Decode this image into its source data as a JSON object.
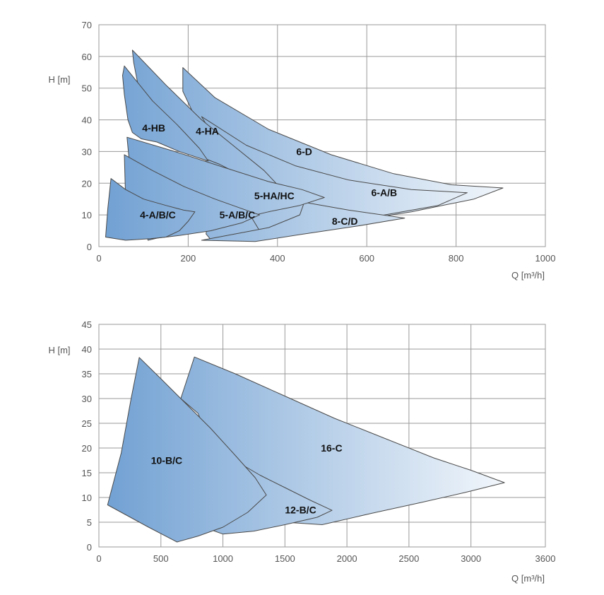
{
  "chart_data": [
    {
      "type": "area",
      "xlabel": "Q [m³/h]",
      "ylabel": "H [m]",
      "xlim": [
        0,
        1000
      ],
      "ylim": [
        0,
        70
      ],
      "xticks": [
        0,
        200,
        400,
        600,
        800,
        1000
      ],
      "yticks": [
        0,
        10,
        20,
        30,
        40,
        50,
        60,
        70
      ],
      "grid": true,
      "gradient": [
        "#6f9fd2",
        "#ffffff"
      ],
      "series": [
        {
          "name": "6-D",
          "label_at": [
            442,
            30
          ],
          "points": [
            [
              188,
              56.5
            ],
            [
              260,
              47
            ],
            [
              380,
              37
            ],
            [
              520,
              29
            ],
            [
              660,
              23
            ],
            [
              790,
              19.5
            ],
            [
              905,
              18.5
            ],
            [
              840,
              15
            ],
            [
              700,
              11
            ],
            [
              540,
              7.5
            ],
            [
              380,
              5
            ],
            [
              250,
              2.3
            ],
            [
              240,
              4
            ],
            [
              250,
              15
            ],
            [
              240,
              27
            ],
            [
              225,
              38
            ],
            [
              188,
              49
            ]
          ]
        },
        {
          "name": "6-A/B",
          "label_at": [
            610,
            17
          ],
          "points": [
            [
              230,
              41
            ],
            [
              330,
              32
            ],
            [
              440,
              25.5
            ],
            [
              560,
              21
            ],
            [
              700,
              18
            ],
            [
              825,
              17
            ],
            [
              760,
              13
            ],
            [
              620,
              9.5
            ],
            [
              470,
              6.5
            ],
            [
              360,
              5
            ],
            [
              330,
              12
            ],
            [
              300,
              24
            ],
            [
              260,
              34
            ]
          ]
        },
        {
          "name": "8-C/D",
          "label_at": [
            522,
            8
          ],
          "points": [
            [
              460,
              14
            ],
            [
              560,
              11.5
            ],
            [
              685,
              9
            ],
            [
              580,
              6.5
            ],
            [
              450,
              3.8
            ],
            [
              350,
              1.6
            ],
            [
              230,
              2
            ],
            [
              380,
              6
            ],
            [
              450,
              10
            ]
          ]
        },
        {
          "name": "4-HA",
          "label_at": [
            217,
            36.5
          ],
          "points": [
            [
              75,
              62
            ],
            [
              150,
              51
            ],
            [
              230,
              40
            ],
            [
              300,
              32
            ],
            [
              370,
              24
            ],
            [
              400,
              19.5
            ],
            [
              340,
              21
            ],
            [
              270,
              26
            ],
            [
              215,
              29
            ],
            [
              150,
              35
            ],
            [
              100,
              42
            ],
            [
              78,
              58
            ]
          ]
        },
        {
          "name": "4-HB",
          "label_at": [
            97,
            37.5
          ],
          "points": [
            [
              57,
              57
            ],
            [
              120,
              46
            ],
            [
              175,
              38.5
            ],
            [
              225,
              31
            ],
            [
              245,
              27
            ],
            [
              180,
              30
            ],
            [
              130,
              33
            ],
            [
              95,
              34
            ],
            [
              75,
              36
            ],
            [
              65,
              40
            ],
            [
              57,
              48
            ],
            [
              53,
              54
            ]
          ]
        },
        {
          "name": "5-HA/HC",
          "label_at": [
            348,
            16
          ],
          "points": [
            [
              63,
              34.5
            ],
            [
              170,
              30
            ],
            [
              280,
              25
            ],
            [
              380,
              20.5
            ],
            [
              455,
              18
            ],
            [
              505,
              15.5
            ],
            [
              450,
              13
            ],
            [
              380,
              11
            ],
            [
              320,
              9
            ],
            [
              250,
              7
            ],
            [
              170,
              4
            ],
            [
              110,
              2
            ],
            [
              90,
              12
            ],
            [
              70,
              24
            ]
          ]
        },
        {
          "name": "5-A/B/C",
          "label_at": [
            270,
            10
          ],
          "points": [
            [
              57,
              29
            ],
            [
              120,
              24
            ],
            [
              190,
              19
            ],
            [
              260,
              15
            ],
            [
              320,
              12
            ],
            [
              360,
              10
            ],
            [
              320,
              7.5
            ],
            [
              250,
              5
            ],
            [
              180,
              3.5
            ],
            [
              120,
              2.5
            ],
            [
              90,
              6
            ],
            [
              60,
              14
            ]
          ]
        },
        {
          "name": "4-A/B/C",
          "label_at": [
            92,
            10
          ],
          "points": [
            [
              27,
              21.5
            ],
            [
              60,
              18
            ],
            [
              100,
              15
            ],
            [
              150,
              13
            ],
            [
              190,
              11.5
            ],
            [
              215,
              11
            ],
            [
              200,
              8
            ],
            [
              180,
              5
            ],
            [
              150,
              3
            ],
            [
              115,
              2.5
            ],
            [
              60,
              2
            ],
            [
              15,
              3
            ],
            [
              20,
              12
            ]
          ]
        }
      ]
    },
    {
      "type": "area",
      "xlabel": "Q [m³/h]",
      "ylabel": "H [m]",
      "xlim": [
        0,
        3600
      ],
      "ylim": [
        0,
        45
      ],
      "xticks": [
        0,
        500,
        1000,
        1500,
        2000,
        2500,
        3000,
        3600
      ],
      "yticks": [
        0,
        5,
        10,
        15,
        20,
        25,
        30,
        35,
        40,
        45
      ],
      "grid": true,
      "gradient": [
        "#6f9fd2",
        "#ffffff"
      ],
      "series": [
        {
          "name": "16-C",
          "label_at": [
            1790,
            20
          ],
          "points": [
            [
              770,
              38.4
            ],
            [
              1100,
              35
            ],
            [
              1500,
              30.5
            ],
            [
              1900,
              26
            ],
            [
              2300,
              22
            ],
            [
              2700,
              18
            ],
            [
              3000,
              15.5
            ],
            [
              3270,
              13
            ],
            [
              2950,
              11
            ],
            [
              2600,
              9
            ],
            [
              2200,
              6.8
            ],
            [
              1800,
              4.5
            ],
            [
              1500,
              5
            ],
            [
              1250,
              8
            ],
            [
              1100,
              11
            ],
            [
              980,
              16
            ],
            [
              880,
              22
            ],
            [
              800,
              27
            ],
            [
              660,
              30
            ]
          ]
        },
        {
          "name": "12-B/C",
          "label_at": [
            1500,
            7.5
          ],
          "points": [
            [
              1095,
              17.5
            ],
            [
              1300,
              14.5
            ],
            [
              1500,
              12
            ],
            [
              1700,
              9.5
            ],
            [
              1880,
              7.4
            ],
            [
              1760,
              6
            ],
            [
              1500,
              4.5
            ],
            [
              1250,
              3.2
            ],
            [
              1000,
              2.6
            ],
            [
              900,
              3.5
            ],
            [
              1000,
              5
            ],
            [
              1100,
              9
            ]
          ]
        },
        {
          "name": "10-B/C",
          "label_at": [
            420,
            17.5
          ],
          "points": [
            [
              325,
              38.3
            ],
            [
              500,
              34
            ],
            [
              700,
              29
            ],
            [
              900,
              24
            ],
            [
              1100,
              18.5
            ],
            [
              1260,
              14
            ],
            [
              1350,
              10.5
            ],
            [
              1200,
              7
            ],
            [
              1000,
              4
            ],
            [
              800,
              2.2
            ],
            [
              630,
              1
            ],
            [
              400,
              4
            ],
            [
              180,
              7
            ],
            [
              70,
              8.5
            ],
            [
              180,
              19
            ],
            [
              260,
              30
            ]
          ]
        }
      ]
    }
  ]
}
